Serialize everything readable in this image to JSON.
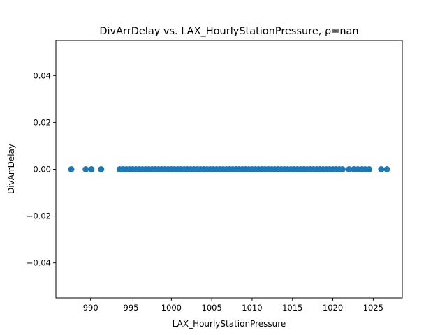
{
  "chart_data": {
    "type": "scatter",
    "title": "DivArrDelay vs. LAX_HourlyStationPressure, ρ=nan",
    "xlabel": "LAX_HourlyStationPressure",
    "ylabel": "DivArrDelay",
    "xlim": [
      985.7,
      1028.6
    ],
    "ylim": [
      -0.055,
      0.055
    ],
    "x_ticks": [
      990,
      995,
      1000,
      1005,
      1010,
      1015,
      1020,
      1025
    ],
    "y_ticks": [
      -0.04,
      -0.02,
      0.0,
      0.02,
      0.04
    ],
    "y_tick_labels": [
      "−0.04",
      "−0.02",
      "0.00",
      "0.02",
      "0.04"
    ],
    "grid": false,
    "marker_color": "#1f77b4",
    "series": [
      {
        "x": [
          987.6,
          989.4,
          990.1,
          991.3,
          993.6,
          994.0,
          994.4,
          994.8,
          995.2,
          995.6,
          996.0,
          996.4,
          996.8,
          997.2,
          997.6,
          998.0,
          998.4,
          998.8,
          999.2,
          999.6,
          1000.0,
          1000.4,
          1000.8,
          1001.2,
          1001.6,
          1002.0,
          1002.4,
          1002.8,
          1003.2,
          1003.6,
          1004.0,
          1004.4,
          1004.8,
          1005.2,
          1005.6,
          1006.0,
          1006.4,
          1006.8,
          1007.2,
          1007.6,
          1008.0,
          1008.4,
          1008.8,
          1009.2,
          1009.6,
          1010.0,
          1010.4,
          1010.8,
          1011.2,
          1011.6,
          1012.0,
          1012.4,
          1012.8,
          1013.2,
          1013.6,
          1014.0,
          1014.4,
          1014.8,
          1015.2,
          1015.6,
          1016.0,
          1016.4,
          1016.8,
          1017.2,
          1017.6,
          1018.0,
          1018.4,
          1018.8,
          1019.2,
          1019.6,
          1020.0,
          1020.4,
          1020.8,
          1021.2,
          1022.0,
          1022.6,
          1023.1,
          1023.6,
          1024.0,
          1024.5,
          1026.0,
          1026.7
        ],
        "y": [
          0,
          0,
          0,
          0,
          0,
          0,
          0,
          0,
          0,
          0,
          0,
          0,
          0,
          0,
          0,
          0,
          0,
          0,
          0,
          0,
          0,
          0,
          0,
          0,
          0,
          0,
          0,
          0,
          0,
          0,
          0,
          0,
          0,
          0,
          0,
          0,
          0,
          0,
          0,
          0,
          0,
          0,
          0,
          0,
          0,
          0,
          0,
          0,
          0,
          0,
          0,
          0,
          0,
          0,
          0,
          0,
          0,
          0,
          0,
          0,
          0,
          0,
          0,
          0,
          0,
          0,
          0,
          0,
          0,
          0,
          0,
          0,
          0,
          0,
          0,
          0,
          0,
          0,
          0,
          0,
          0,
          0
        ]
      }
    ]
  }
}
